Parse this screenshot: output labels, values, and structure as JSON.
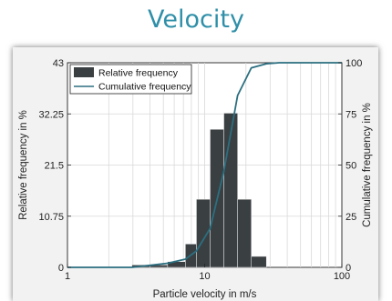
{
  "page": {
    "title": "Velocity"
  },
  "chart_data": {
    "type": "bar",
    "title": "",
    "xlabel": "Particle velocity in m/s",
    "ylabel": "Relative frequency in %",
    "y2label": "Cumulative frequency in %",
    "xscale": "log",
    "xlim": [
      1,
      100
    ],
    "ylim": [
      0,
      43
    ],
    "y2lim": [
      0,
      100
    ],
    "x_ticks": [
      "1",
      "10",
      "100"
    ],
    "y_ticks": [
      "0",
      "10.75",
      "21.5",
      "32.25",
      "43"
    ],
    "y2_ticks": [
      "0",
      "25",
      "50",
      "75",
      "100"
    ],
    "grid": true,
    "legend_position": "top-left",
    "series": [
      {
        "name": "Relative frequency",
        "kind": "bar",
        "color": "#3a3f42",
        "bins": [
          {
            "x0": 2.95,
            "x1": 3.98,
            "value": 0.5
          },
          {
            "x0": 3.98,
            "x1": 5.37,
            "value": 0.5
          },
          {
            "x0": 5.37,
            "x1": 7.24,
            "value": 1.2
          },
          {
            "x0": 7.24,
            "x1": 8.71,
            "value": 4.9
          },
          {
            "x0": 8.71,
            "x1": 10.96,
            "value": 14.3
          },
          {
            "x0": 10.96,
            "x1": 13.8,
            "value": 29.0
          },
          {
            "x0": 13.8,
            "x1": 17.38,
            "value": 32.4
          },
          {
            "x0": 17.38,
            "x1": 21.88,
            "value": 14.3
          },
          {
            "x0": 21.88,
            "x1": 28.18,
            "value": 2.3
          }
        ]
      },
      {
        "name": "Cumulative frequency",
        "kind": "line",
        "axis": "right",
        "color": "#2b6f80",
        "x": [
          1,
          2.95,
          3.98,
          5.37,
          7.24,
          8.71,
          10.96,
          13.8,
          17.38,
          21.88,
          28.18,
          35,
          100
        ],
        "y": [
          0,
          0,
          1,
          2,
          4,
          8,
          19,
          47,
          84,
          97.5,
          99.5,
          100,
          100
        ]
      }
    ]
  }
}
